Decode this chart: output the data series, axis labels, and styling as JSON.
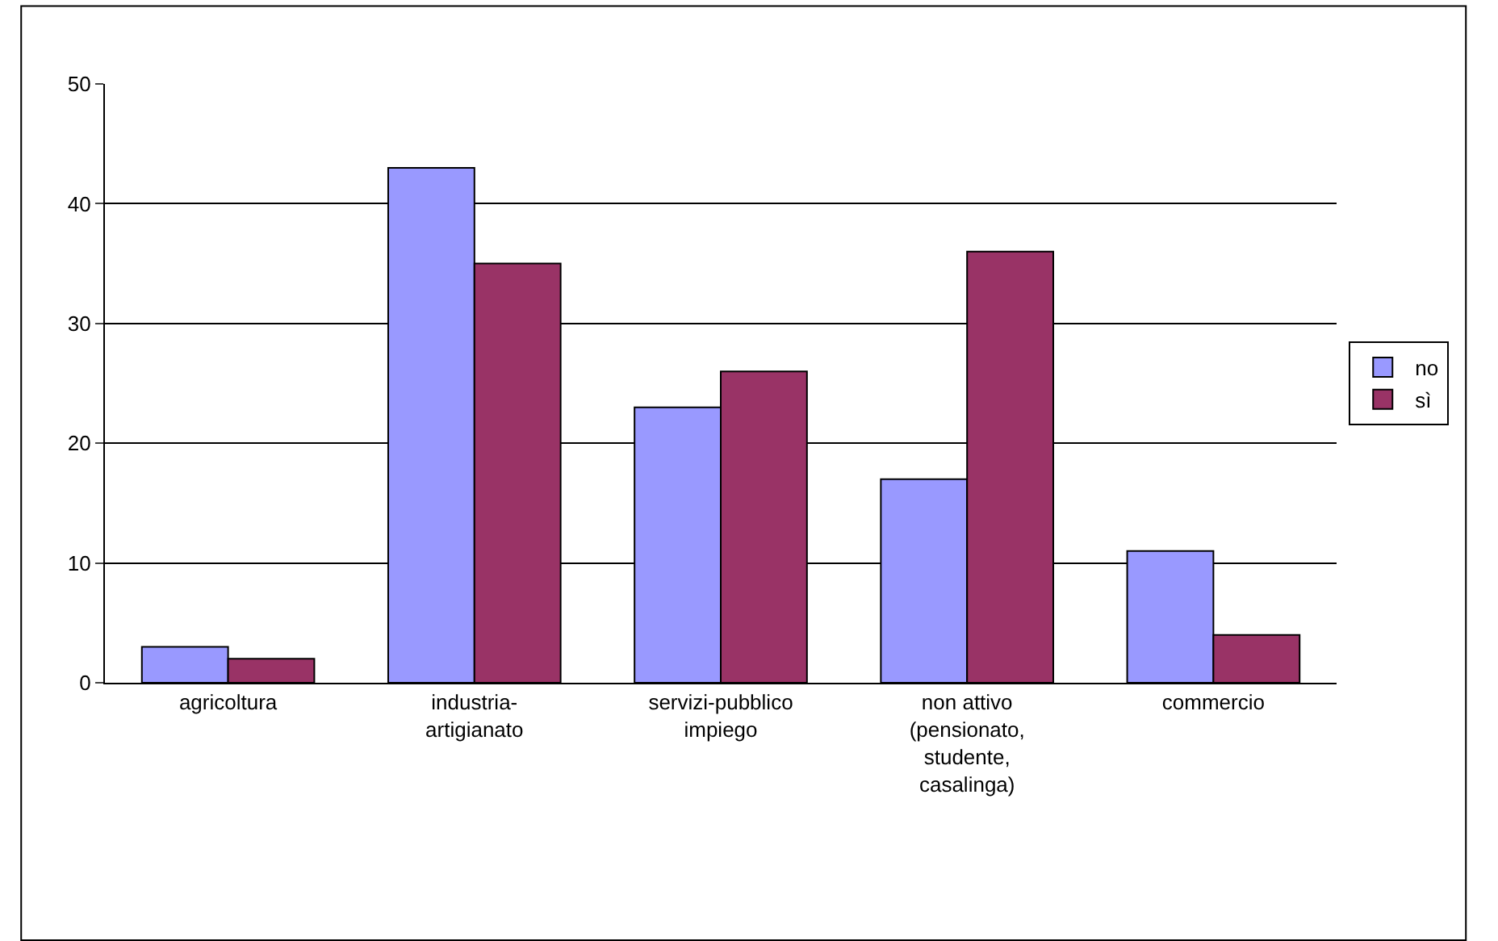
{
  "chart_data": {
    "type": "bar",
    "categories": [
      "agricoltura",
      "industria-artigianato",
      "servizi-pubblico impiego",
      "non attivo (pensionato, studente, casalinga)",
      "commercio"
    ],
    "series": [
      {
        "name": "no",
        "color": "#9999ff",
        "values": [
          3,
          43,
          23,
          17,
          11
        ]
      },
      {
        "name": "sì",
        "color": "#993366",
        "values": [
          2,
          35,
          26,
          36,
          4
        ]
      }
    ],
    "ylim": [
      0,
      50
    ],
    "yticks": [
      0,
      10,
      20,
      30,
      40,
      50
    ],
    "grid": "y",
    "legend": "right"
  }
}
